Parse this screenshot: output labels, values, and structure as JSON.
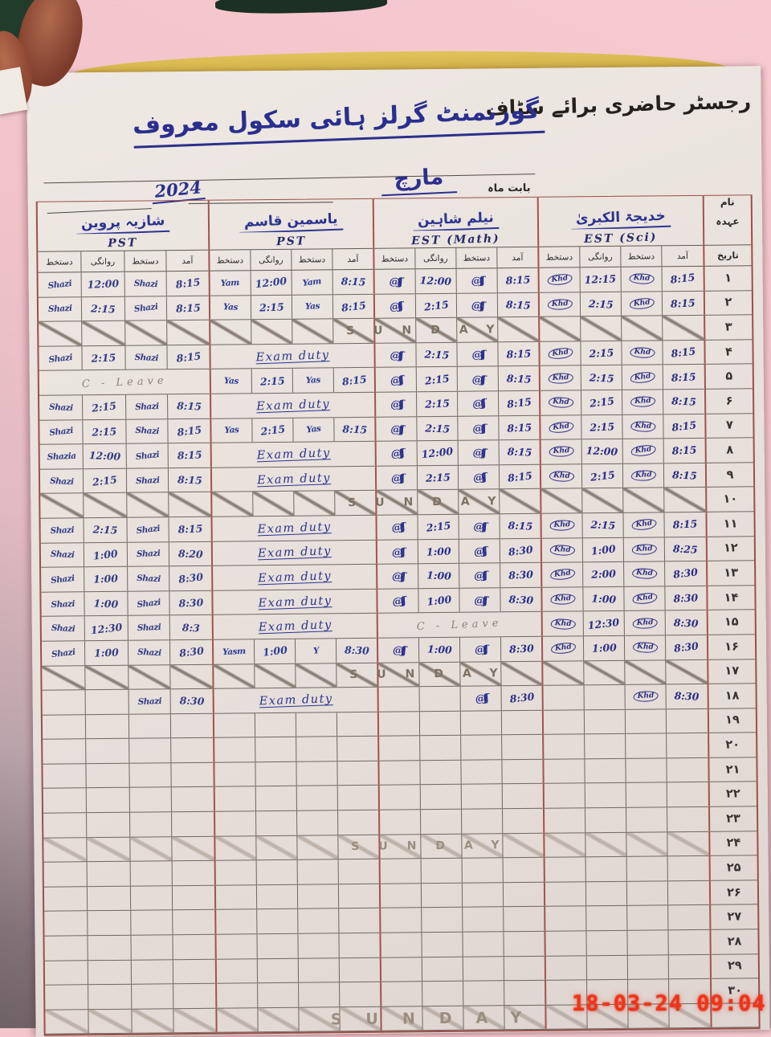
{
  "photo": {
    "timestamp": "18-03-24  09:04"
  },
  "form": {
    "title": "رجسٹر حاضری برائے سٹاف",
    "school": "گورنمنٹ گرلز ہائی سکول معروف",
    "month_label": "بابت ماہ",
    "month": "مارچ",
    "year": "2024",
    "name_label": "نام",
    "designation_label": "عہدہ",
    "date_label": "تاریخ",
    "col_arrival": "آمد",
    "col_signature": "دستخط",
    "col_departure": "روانگی"
  },
  "texts": {
    "sunday": "SUNDAY",
    "exam": "Exam duty",
    "leave": "C - Leave"
  },
  "teachers": [
    {
      "name": "شازیہ پروین",
      "designation": "PST"
    },
    {
      "name": "یاسمین قاسم",
      "designation": "PST"
    },
    {
      "name": "نیلم شاہین",
      "designation": "EST (Math)"
    },
    {
      "name": "خدیجۃ الکبریٰ",
      "designation": "EST (Sci)"
    }
  ],
  "rows": [
    {
      "d": "۱",
      "c": [
        {
          "t": [
            "Shazi",
            "12:00",
            "Shazi",
            "8:15"
          ]
        },
        {
          "t": [
            "Yam",
            "12:00",
            "Yam",
            "8:15"
          ]
        },
        {
          "t": [
            "@ʃʃ",
            "12:00",
            "@ʃʃ",
            "8:15"
          ]
        },
        {
          "t": [
            "Khd",
            "12:15",
            "Khd",
            "8:15"
          ]
        }
      ]
    },
    {
      "d": "۲",
      "c": [
        {
          "t": [
            "Shazi",
            "2:15",
            "Shazi",
            "8:15"
          ]
        },
        {
          "t": [
            "Yas",
            "2:15",
            "Yas",
            "8:15"
          ]
        },
        {
          "t": [
            "@ʃʃ",
            "2:15",
            "@ʃʃ",
            "8:15"
          ]
        },
        {
          "t": [
            "Khd",
            "2:15",
            "Khd",
            "8:15"
          ]
        }
      ]
    },
    {
      "d": "۳",
      "sun": 1
    },
    {
      "d": "۴",
      "c": [
        {
          "t": [
            "Shazi",
            "2:15",
            "Shazi",
            "8:15"
          ]
        },
        {
          "x": 1
        },
        {
          "t": [
            "@ʃʃ",
            "2:15",
            "@ʃʃ",
            "8:15"
          ]
        },
        {
          "t": [
            "Khd",
            "2:15",
            "Khd",
            "8:15"
          ]
        }
      ]
    },
    {
      "d": "۵",
      "c": [
        {
          "l": 1
        },
        {
          "t": [
            "Yas",
            "2:15",
            "Yas",
            "8:15"
          ]
        },
        {
          "t": [
            "@ʃʃ",
            "2:15",
            "@ʃʃ",
            "8:15"
          ]
        },
        {
          "t": [
            "Khd",
            "2:15",
            "Khd",
            "8:15"
          ]
        }
      ]
    },
    {
      "d": "۶",
      "c": [
        {
          "t": [
            "Shazi",
            "2:15",
            "Shazi",
            "8:15"
          ]
        },
        {
          "x": 1
        },
        {
          "t": [
            "@ʃʃ",
            "2:15",
            "@ʃʃ",
            "8:15"
          ]
        },
        {
          "t": [
            "Khd",
            "2:15",
            "Khd",
            "8:15"
          ]
        }
      ]
    },
    {
      "d": "۷",
      "c": [
        {
          "t": [
            "Shazi",
            "2:15",
            "Shazi",
            "8:15"
          ]
        },
        {
          "t": [
            "Yas",
            "2:15",
            "Yas",
            "8:15"
          ]
        },
        {
          "t": [
            "@ʃʃ",
            "2:15",
            "@ʃʃ",
            "8:15"
          ]
        },
        {
          "t": [
            "Khd",
            "2:15",
            "Khd",
            "8:15"
          ]
        }
      ]
    },
    {
      "d": "۸",
      "c": [
        {
          "t": [
            "Shazia",
            "12:00",
            "Shazi",
            "8:15"
          ]
        },
        {
          "x": 1
        },
        {
          "t": [
            "@ʃʃ",
            "12:00",
            "@ʃʃ",
            "8:15"
          ]
        },
        {
          "t": [
            "Khd",
            "12:00",
            "Khd",
            "8:15"
          ]
        }
      ]
    },
    {
      "d": "۹",
      "c": [
        {
          "t": [
            "Shazi",
            "2:15",
            "Shazi",
            "8:15"
          ]
        },
        {
          "x": 1
        },
        {
          "t": [
            "@ʃʃ",
            "2:15",
            "@ʃʃ",
            "8:15"
          ]
        },
        {
          "t": [
            "Khd",
            "2:15",
            "Khd",
            "8:15"
          ]
        }
      ]
    },
    {
      "d": "۱۰",
      "sun": 1
    },
    {
      "d": "۱۱",
      "c": [
        {
          "t": [
            "Shazi",
            "2:15",
            "Shazi",
            "8:15"
          ]
        },
        {
          "x": 1
        },
        {
          "t": [
            "@ʃʃ",
            "2:15",
            "@ʃʃ",
            "8:15"
          ]
        },
        {
          "t": [
            "Khd",
            "2:15",
            "Khd",
            "8:15"
          ]
        }
      ]
    },
    {
      "d": "۱۲",
      "c": [
        {
          "t": [
            "Shazi",
            "1:00",
            "Shazi",
            "8:20"
          ]
        },
        {
          "x": 1
        },
        {
          "t": [
            "@ʃʃ",
            "1:00",
            "@ʃʃ",
            "8:30"
          ]
        },
        {
          "t": [
            "Khd",
            "1:00",
            "Khd",
            "8:25"
          ]
        }
      ]
    },
    {
      "d": "۱۳",
      "c": [
        {
          "t": [
            "Shazi",
            "1:00",
            "Shazi",
            "8:30"
          ]
        },
        {
          "x": 1
        },
        {
          "t": [
            "@ʃʃ",
            "1:00",
            "@ʃʃ",
            "8:30"
          ]
        },
        {
          "t": [
            "Khd",
            "2:00",
            "Khd",
            "8:30"
          ]
        }
      ]
    },
    {
      "d": "۱۴",
      "c": [
        {
          "t": [
            "Shazi",
            "1:00",
            "Shazi",
            "8:30"
          ]
        },
        {
          "x": 1
        },
        {
          "t": [
            "@ʃʃ",
            "1:00",
            "@ʃʃ",
            "8:30"
          ]
        },
        {
          "t": [
            "Khd",
            "1:00",
            "Khd",
            "8:30"
          ]
        }
      ]
    },
    {
      "d": "۱۵",
      "c": [
        {
          "t": [
            "Shazi",
            "12:30",
            "Shazi",
            "8:3"
          ]
        },
        {
          "x": 1
        },
        {
          "l": 1
        },
        {
          "t": [
            "Khd",
            "12:30",
            "Khd",
            "8:30"
          ]
        }
      ]
    },
    {
      "d": "۱۶",
      "c": [
        {
          "t": [
            "Shazi",
            "1:00",
            "Shazi",
            "8:30"
          ]
        },
        {
          "t": [
            "Yasm",
            "1:00",
            "Y",
            "8:30"
          ]
        },
        {
          "t": [
            "@ʃʃ",
            "1:00",
            "@ʃʃ",
            "8:30"
          ]
        },
        {
          "t": [
            "Khd",
            "1:00",
            "Khd",
            "8:30"
          ]
        }
      ]
    },
    {
      "d": "۱۷",
      "sun": 1
    },
    {
      "d": "۱۸",
      "c": [
        {
          "t": [
            "",
            "",
            "Shazi",
            "8:30"
          ]
        },
        {
          "x": 1
        },
        {
          "t": [
            "",
            "",
            "@ʃʃ",
            "8:30"
          ]
        },
        {
          "t": [
            "",
            "",
            "Khd",
            "8:30"
          ]
        }
      ]
    },
    {
      "d": "۱۹",
      "c": [
        0,
        0,
        0,
        0
      ]
    },
    {
      "d": "۲۰",
      "c": [
        0,
        0,
        0,
        0
      ]
    },
    {
      "d": "۲۱",
      "c": [
        0,
        0,
        0,
        0
      ]
    },
    {
      "d": "۲۲",
      "c": [
        0,
        0,
        0,
        0
      ]
    },
    {
      "d": "۲۳",
      "c": [
        0,
        0,
        0,
        0
      ]
    },
    {
      "d": "۲۴",
      "sun": 1,
      "f": 1
    },
    {
      "d": "۲۵",
      "c": [
        0,
        0,
        0,
        0
      ]
    },
    {
      "d": "۲۶",
      "c": [
        0,
        0,
        0,
        0
      ]
    },
    {
      "d": "۲۷",
      "c": [
        0,
        0,
        0,
        0
      ]
    },
    {
      "d": "۲۸",
      "c": [
        0,
        0,
        0,
        0
      ]
    },
    {
      "d": "۲۹",
      "c": [
        0,
        0,
        0,
        0
      ]
    },
    {
      "d": "۳۰",
      "c": [
        0,
        0,
        0,
        0
      ]
    },
    {
      "d": "",
      "sun": 1,
      "f": 1,
      "big": 1
    }
  ]
}
